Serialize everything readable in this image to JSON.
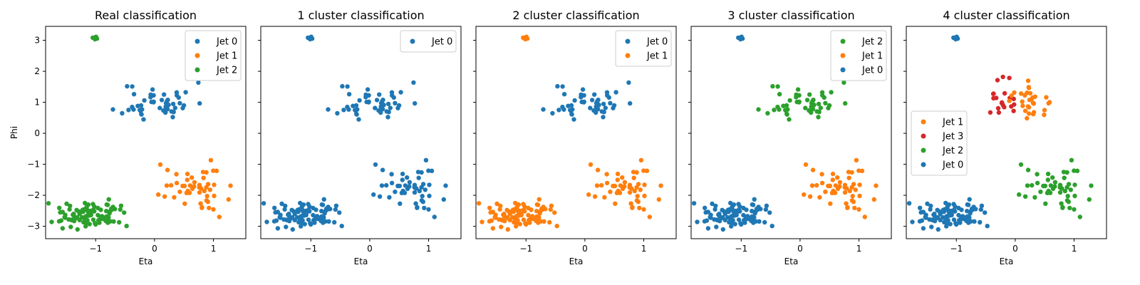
{
  "colors": {
    "jet0": "#1f77b4",
    "jet1": "#ff7f0e",
    "jet2": "#2ca02c",
    "jet3": "#d62728"
  },
  "chart_data": [
    {
      "type": "scatter",
      "title": "Real classification",
      "xlabel": "Eta",
      "ylabel": "Phi",
      "xlim": [
        -1.85,
        1.55
      ],
      "ylim": [
        -3.4,
        3.45
      ],
      "xticks": [
        -1,
        0,
        1
      ],
      "yticks": [
        -3,
        -2,
        -1,
        0,
        1,
        2,
        3
      ],
      "legend_location": "upper right",
      "legend": [
        "Jet 0",
        "Jet 1",
        "Jet 2"
      ],
      "clusters": [
        {
          "name": "Jet 0",
          "color": "jet0",
          "n": 50,
          "center": [
            0.05,
            1.0
          ],
          "spread": [
            0.3,
            0.32
          ],
          "seed": 11
        },
        {
          "name": "Jet 1",
          "color": "jet1",
          "n": 50,
          "center": [
            0.62,
            -1.75
          ],
          "spread": [
            0.3,
            0.35
          ],
          "seed": 22
        },
        {
          "name": "Jet 2",
          "color": "jet2",
          "n": 95,
          "center": [
            -1.1,
            -2.65
          ],
          "spread": [
            0.27,
            0.2
          ],
          "seed": 33
        },
        {
          "name": "Jet 2",
          "color": "jet2",
          "n": 4,
          "center": [
            -1.0,
            3.04
          ],
          "spread": [
            0.06,
            0.03
          ],
          "seed": 44
        }
      ]
    },
    {
      "type": "scatter",
      "title": "1 cluster classification",
      "xlabel": "Eta",
      "xlim": [
        -1.85,
        1.55
      ],
      "ylim": [
        -3.4,
        3.45
      ],
      "xticks": [
        -1,
        0,
        1
      ],
      "legend_location": "upper right",
      "legend": [
        "Jet 0"
      ],
      "clusters": [
        {
          "name": "Jet 0",
          "color": "jet0",
          "n": 50,
          "center": [
            0.05,
            1.0
          ],
          "spread": [
            0.3,
            0.32
          ],
          "seed": 11
        },
        {
          "name": "Jet 0",
          "color": "jet0",
          "n": 50,
          "center": [
            0.62,
            -1.75
          ],
          "spread": [
            0.3,
            0.35
          ],
          "seed": 22
        },
        {
          "name": "Jet 0",
          "color": "jet0",
          "n": 95,
          "center": [
            -1.1,
            -2.65
          ],
          "spread": [
            0.27,
            0.2
          ],
          "seed": 33
        },
        {
          "name": "Jet 0",
          "color": "jet0",
          "n": 4,
          "center": [
            -1.0,
            3.04
          ],
          "spread": [
            0.06,
            0.03
          ],
          "seed": 44
        }
      ]
    },
    {
      "type": "scatter",
      "title": "2 cluster classification",
      "xlabel": "Eta",
      "xlim": [
        -1.85,
        1.55
      ],
      "ylim": [
        -3.4,
        3.45
      ],
      "xticks": [
        -1,
        0,
        1
      ],
      "legend_location": "upper right",
      "legend": [
        "Jet 0",
        "Jet 1"
      ],
      "clusters": [
        {
          "name": "Jet 0",
          "color": "jet0",
          "n": 50,
          "center": [
            0.05,
            1.0
          ],
          "spread": [
            0.3,
            0.32
          ],
          "seed": 11
        },
        {
          "name": "Jet 1",
          "color": "jet1",
          "n": 50,
          "center": [
            0.62,
            -1.75
          ],
          "spread": [
            0.3,
            0.35
          ],
          "seed": 22
        },
        {
          "name": "Jet 1",
          "color": "jet1",
          "n": 95,
          "center": [
            -1.1,
            -2.65
          ],
          "spread": [
            0.27,
            0.2
          ],
          "seed": 33
        },
        {
          "name": "Jet 1",
          "color": "jet1",
          "n": 4,
          "center": [
            -1.0,
            3.04
          ],
          "spread": [
            0.06,
            0.03
          ],
          "seed": 44
        }
      ]
    },
    {
      "type": "scatter",
      "title": "3 cluster classification",
      "xlabel": "Eta",
      "xlim": [
        -1.85,
        1.55
      ],
      "ylim": [
        -3.4,
        3.45
      ],
      "xticks": [
        -1,
        0,
        1
      ],
      "legend_location": "upper right",
      "legend": [
        "Jet 2",
        "Jet 1",
        "Jet 0"
      ],
      "clusters": [
        {
          "name": "Jet 2",
          "color": "jet2",
          "n": 50,
          "center": [
            0.05,
            1.0
          ],
          "spread": [
            0.3,
            0.32
          ],
          "seed": 11
        },
        {
          "name": "Jet 1",
          "color": "jet1",
          "n": 50,
          "center": [
            0.62,
            -1.75
          ],
          "spread": [
            0.3,
            0.35
          ],
          "seed": 22
        },
        {
          "name": "Jet 0",
          "color": "jet0",
          "n": 95,
          "center": [
            -1.1,
            -2.65
          ],
          "spread": [
            0.27,
            0.2
          ],
          "seed": 33
        },
        {
          "name": "Jet 0",
          "color": "jet0",
          "n": 4,
          "center": [
            -1.0,
            3.04
          ],
          "spread": [
            0.06,
            0.03
          ],
          "seed": 44
        }
      ]
    },
    {
      "type": "scatter",
      "title": "4 cluster classification",
      "xlabel": "Eta",
      "xlim": [
        -1.85,
        1.55
      ],
      "ylim": [
        -3.4,
        3.45
      ],
      "xticks": [
        -1,
        0,
        1
      ],
      "legend_location": "center left",
      "legend": [
        "Jet 1",
        "Jet 3",
        "Jet 2",
        "Jet 0"
      ],
      "clusters": [
        {
          "name": "Jet 3",
          "color": "jet3",
          "n": 20,
          "center": [
            -0.2,
            1.1
          ],
          "spread": [
            0.15,
            0.3
          ],
          "seed": 55
        },
        {
          "name": "Jet 1",
          "color": "jet1",
          "n": 30,
          "center": [
            0.25,
            1.0
          ],
          "spread": [
            0.2,
            0.3
          ],
          "seed": 66
        },
        {
          "name": "Jet 2",
          "color": "jet2",
          "n": 50,
          "center": [
            0.62,
            -1.75
          ],
          "spread": [
            0.3,
            0.35
          ],
          "seed": 22
        },
        {
          "name": "Jet 0",
          "color": "jet0",
          "n": 95,
          "center": [
            -1.1,
            -2.65
          ],
          "spread": [
            0.27,
            0.2
          ],
          "seed": 33
        },
        {
          "name": "Jet 0",
          "color": "jet0",
          "n": 4,
          "center": [
            -1.0,
            3.04
          ],
          "spread": [
            0.06,
            0.03
          ],
          "seed": 44
        }
      ]
    }
  ]
}
